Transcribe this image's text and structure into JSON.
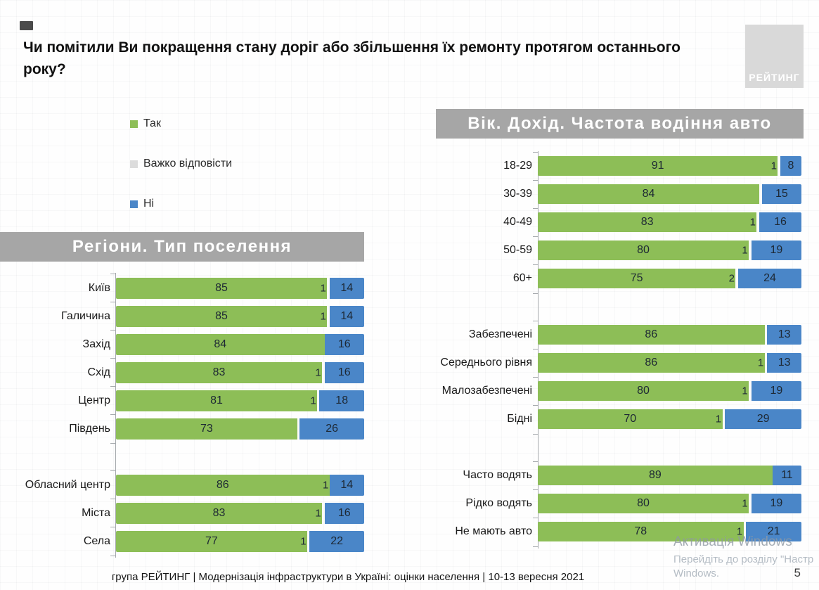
{
  "title": "Чи помітили Ви покращення стану доріг або збільшення їх ремонту протягом останнього року?",
  "logo": {
    "text": "РЕЙТИНГ"
  },
  "legend": [
    {
      "label": "Так",
      "color": "#8dbe57"
    },
    {
      "label": "Важко відповісти",
      "color": "#dcdcdc"
    },
    {
      "label": "Ні",
      "color": "#4a86c8"
    }
  ],
  "colors": {
    "yes": "#8dbe57",
    "dk": "#fbfbfa",
    "no": "#4a86c8",
    "band": "#a6a6a6",
    "logo_bg": "#d9d9d9"
  },
  "chart_data": [
    {
      "type": "bar",
      "stacked": true,
      "orientation": "horizontal",
      "title": "Регіони. Тип поселення",
      "series_names": [
        "Так",
        "Важко відповісти",
        "Ні"
      ],
      "xlim": [
        0,
        100
      ],
      "groups": [
        {
          "name": "Регіони",
          "rows": [
            {
              "category": "Київ",
              "yes": 85,
              "dk": 1,
              "no": 14
            },
            {
              "category": "Галичина",
              "yes": 85,
              "dk": 1,
              "no": 14
            },
            {
              "category": "Захід",
              "yes": 84,
              "dk": null,
              "no": 16
            },
            {
              "category": "Схід",
              "yes": 83,
              "dk": 1,
              "no": 16
            },
            {
              "category": "Центр",
              "yes": 81,
              "dk": 1,
              "no": 18
            },
            {
              "category": "Південь",
              "yes": 73,
              "dk": null,
              "no": 26
            }
          ]
        },
        {
          "name": "Тип поселення",
          "rows": [
            {
              "category": "Обласний центр",
              "yes": 86,
              "dk": 1,
              "no": 14
            },
            {
              "category": "Міста",
              "yes": 83,
              "dk": 1,
              "no": 16
            },
            {
              "category": "Села",
              "yes": 77,
              "dk": 1,
              "no": 22
            }
          ]
        }
      ]
    },
    {
      "type": "bar",
      "stacked": true,
      "orientation": "horizontal",
      "title": "Вік. Дохід. Частота водіння авто",
      "series_names": [
        "Так",
        "Важко відповісти",
        "Ні"
      ],
      "xlim": [
        0,
        100
      ],
      "groups": [
        {
          "name": "Вік",
          "rows": [
            {
              "category": "18-29",
              "yes": 91,
              "dk": 1,
              "no": 8
            },
            {
              "category": "30-39",
              "yes": 84,
              "dk": null,
              "no": 15
            },
            {
              "category": "40-49",
              "yes": 83,
              "dk": 1,
              "no": 16
            },
            {
              "category": "50-59",
              "yes": 80,
              "dk": 1,
              "no": 19
            },
            {
              "category": "60+",
              "yes": 75,
              "dk": 2,
              "no": 24
            }
          ]
        },
        {
          "name": "Дохід",
          "rows": [
            {
              "category": "Забезпечені",
              "yes": 86,
              "dk": null,
              "no": 13
            },
            {
              "category": "Середнього рівня",
              "yes": 86,
              "dk": 1,
              "no": 13
            },
            {
              "category": "Малозабезпечені",
              "yes": 80,
              "dk": 1,
              "no": 19
            },
            {
              "category": "Бідні",
              "yes": 70,
              "dk": 1,
              "no": 29
            }
          ]
        },
        {
          "name": "Частота водіння авто",
          "rows": [
            {
              "category": "Часто водять",
              "yes": 89,
              "dk": null,
              "no": 11
            },
            {
              "category": "Рідко водять",
              "yes": 80,
              "dk": 1,
              "no": 19
            },
            {
              "category": "Не мають авто",
              "yes": 78,
              "dk": 1,
              "no": 21
            }
          ]
        }
      ]
    }
  ],
  "footer": "група РЕЙТИНГ | Модернізація інфраструктури в Україні: оцінки населення | 10-13 вересня 2021",
  "page_number": "5",
  "watermark": {
    "line1": "Активація Windows",
    "line2": "Перейдіть до розділу \"Настр",
    "line3": "Windows."
  }
}
